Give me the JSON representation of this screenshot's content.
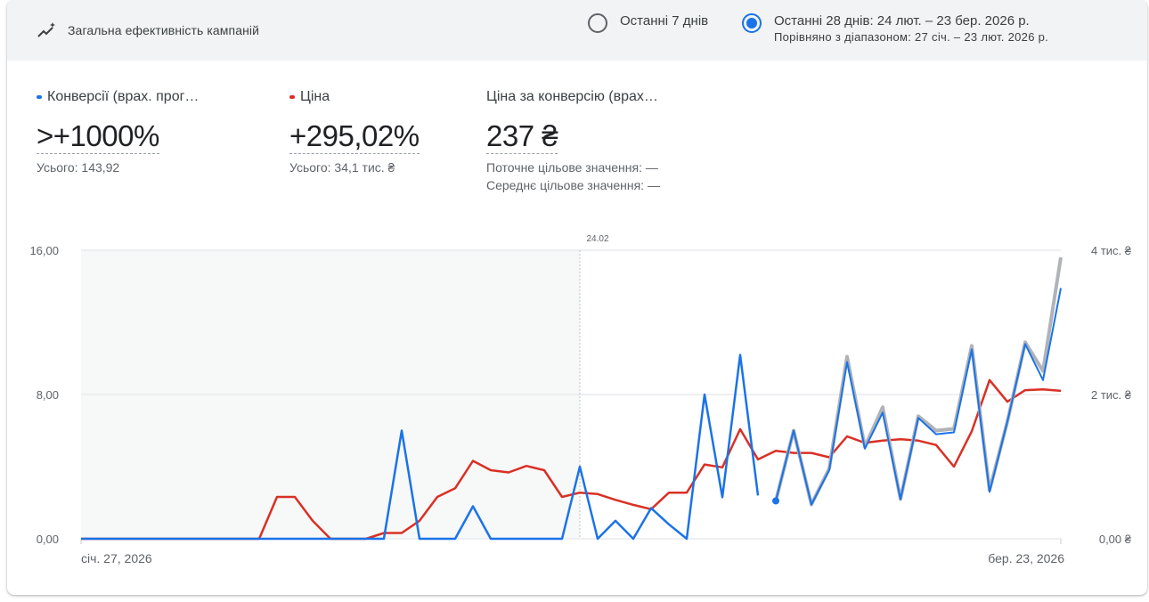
{
  "header": {
    "title": "Загальна ефективність кампаній",
    "title_icon": "trending-up-sparkle-icon",
    "range_options": [
      {
        "label": "Останні 7 днів",
        "selected": false
      },
      {
        "label": "Останні 28 днів: 24 лют. – 23 бер. 2026 р.",
        "sublabel": "Порівняно з діапазоном: 27 січ. – 23 лют. 2026 р.",
        "selected": true
      }
    ]
  },
  "metrics": [
    {
      "label": "Конверсії (врах. прог…",
      "value": ">+1000%",
      "sub": "Усього: 143,92",
      "color": "#1a73e8"
    },
    {
      "label": "Ціна",
      "value": "+295,02%",
      "sub": "Усього: 34,1 тис. ₴",
      "color": "#d93025"
    },
    {
      "label": "Ціна за конверсію (врах…",
      "value": "237 ₴",
      "sub1": "Поточне цільове значення: —",
      "sub2": "Середнє цільове значення: —"
    }
  ],
  "chart_data": {
    "type": "line",
    "x_start_label": "січ. 27, 2026",
    "x_end_label": "бер. 23, 2026",
    "divider_label": "24.02",
    "y_left": {
      "ticks": [
        "0,00",
        "8,00",
        "16,00"
      ],
      "range": [
        0,
        16
      ]
    },
    "y_right": {
      "ticks": [
        "0,00 ₴",
        "2 тис. ₴",
        "4 тис. ₴"
      ],
      "range": [
        0,
        4000
      ]
    },
    "n_points": 56,
    "divider_index": 28,
    "dashed_start_index": 39,
    "colors": {
      "conversions": "#1a73e8",
      "cost": "#d93025",
      "projection": "#b0b3b8",
      "grid": "#e8eaed",
      "shade": "#f1f3f4"
    },
    "series": [
      {
        "axis": "left",
        "color": "#1a73e8",
        "values": [
          0,
          0,
          0,
          0,
          0,
          0,
          0,
          0,
          0,
          0,
          0,
          0,
          0,
          0,
          0,
          0,
          0,
          0,
          6,
          0,
          0,
          0,
          1.8,
          0,
          0,
          0,
          0,
          0,
          4,
          0,
          1,
          0,
          1.7,
          0.8,
          0,
          8,
          2.3,
          10.2,
          2.4,
          2.1,
          6,
          1.9,
          3.8,
          9.8,
          5,
          7,
          2.2,
          6.7,
          5.8,
          5.9,
          10.5,
          2.6,
          6.5,
          10.8,
          8.8,
          13.9
        ]
      },
      {
        "axis": "right",
        "color": "#d93025",
        "values": [
          0,
          0,
          0,
          0,
          0,
          0,
          0,
          0,
          0,
          0,
          0,
          580,
          580,
          250,
          0,
          0,
          0,
          80,
          80,
          250,
          580,
          700,
          1080,
          950,
          920,
          1010,
          950,
          580,
          640,
          620,
          540,
          470,
          410,
          640,
          640,
          1030,
          990,
          1520,
          1100,
          1220,
          1190,
          1190,
          1130,
          1420,
          1330,
          1360,
          1380,
          1360,
          1300,
          1000,
          1490,
          2200,
          1900,
          2060,
          2070,
          2050
        ]
      },
      {
        "axis": "left",
        "color": "#b0b3b8",
        "values": [
          null,
          null,
          null,
          null,
          null,
          null,
          null,
          null,
          null,
          null,
          null,
          null,
          null,
          null,
          null,
          null,
          null,
          null,
          null,
          null,
          null,
          null,
          null,
          null,
          null,
          null,
          null,
          null,
          null,
          null,
          null,
          null,
          null,
          null,
          null,
          null,
          null,
          null,
          null,
          2.1,
          6,
          1.9,
          3.9,
          10.1,
          5.1,
          7.3,
          2.2,
          6.8,
          6,
          6.1,
          10.7,
          2.7,
          6.5,
          10.9,
          9.3,
          15.6
        ]
      }
    ]
  }
}
